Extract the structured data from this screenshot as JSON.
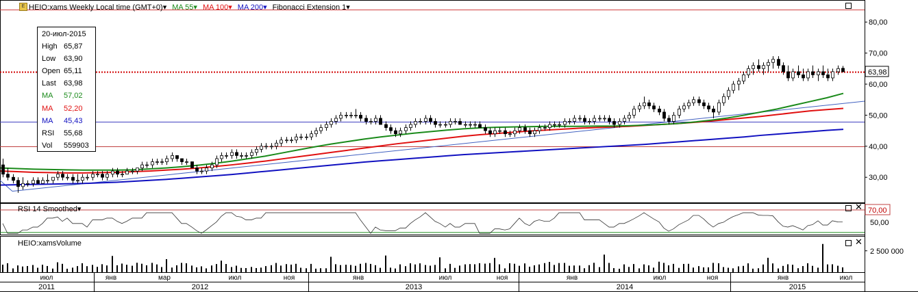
{
  "header": {
    "logo": "E",
    "symbol": "HEIO:xams Weekly Local time (GMT+0)",
    "ma55": "MA 55",
    "ma100": "MA 100",
    "ma200": "MA 200",
    "fib": "Fibonacci Extension 1"
  },
  "info_box": {
    "date": "20-июл-2015",
    "rows": [
      {
        "k": "High",
        "v": "65,87"
      },
      {
        "k": "Low",
        "v": "63,90"
      },
      {
        "k": "Open",
        "v": "65,11"
      },
      {
        "k": "Last",
        "v": "63,98"
      },
      {
        "k": "MA",
        "v": "57,02"
      },
      {
        "k": "MA",
        "v": "52,20"
      },
      {
        "k": "MA",
        "v": "45,43"
      },
      {
        "k": "RSI",
        "v": "55,68"
      },
      {
        "k": "Vol",
        "v": "559903"
      }
    ]
  },
  "colors": {
    "ma55": "#1a8a1a",
    "ma100": "#e01010",
    "ma200": "#1010c0",
    "up": "#ffffff",
    "down": "#000000"
  },
  "rsi_panel": {
    "title": "RSI 14 Smoothed",
    "level_70": "70,00",
    "label_50": "50,00"
  },
  "volume_panel": {
    "title": "HEIO:xamsVolume",
    "tick": "2 500 000"
  },
  "price_axis": {
    "ticks": [
      "80,00",
      "70,00",
      "60,00",
      "50,00",
      "40,00",
      "30,00"
    ],
    "last": "63,98"
  },
  "time_axis": {
    "months": [
      "июл",
      "янв",
      "мар",
      "июл",
      "ноя",
      "янв",
      "июл",
      "ноя",
      "янв",
      "июл",
      "ноя",
      "янв",
      "июл"
    ],
    "years": [
      "2011",
      "2012",
      "2013",
      "2014",
      "2015"
    ]
  },
  "chart_data": {
    "type": "candlestick",
    "timeframe": "weekly",
    "x_range": [
      "2011-05",
      "2015-07-20"
    ],
    "y_range": [
      23,
      86
    ],
    "ohlc": [
      [
        34.0,
        36.0,
        30.0,
        31.0
      ],
      [
        31.0,
        33.0,
        29.0,
        30.0
      ],
      [
        30.0,
        31.0,
        28.0,
        29.0
      ],
      [
        29.0,
        30.0,
        25.0,
        27.0
      ],
      [
        27.0,
        30.0,
        26.0,
        28.0
      ],
      [
        28.0,
        29.0,
        27.0,
        28.0
      ],
      [
        28.0,
        30.0,
        27.0,
        29.0
      ],
      [
        29.0,
        30.0,
        28.0,
        28.0
      ],
      [
        28.0,
        30.0,
        28.0,
        29.0
      ],
      [
        29.0,
        31.0,
        28.0,
        29.0
      ],
      [
        29.0,
        30.0,
        28.0,
        30.0
      ],
      [
        30.0,
        32.0,
        29.0,
        31.0
      ],
      [
        31.0,
        32.0,
        29.0,
        30.0
      ],
      [
        30.0,
        31.0,
        29.0,
        30.0
      ],
      [
        30.0,
        31.0,
        28.0,
        29.0
      ],
      [
        29.0,
        31.0,
        28.0,
        29.0
      ],
      [
        29.0,
        31.0,
        28.0,
        30.0
      ],
      [
        30.0,
        31.0,
        29.0,
        30.0
      ],
      [
        30.0,
        32.0,
        29.0,
        31.0
      ],
      [
        31.0,
        32.0,
        30.0,
        31.0
      ],
      [
        31.0,
        32.0,
        29.0,
        30.0
      ],
      [
        30.0,
        32.0,
        29.0,
        31.0
      ],
      [
        31.0,
        33.0,
        30.0,
        32.0
      ],
      [
        32.0,
        33.0,
        30.0,
        31.0
      ],
      [
        31.0,
        32.0,
        30.0,
        31.0
      ],
      [
        31.0,
        33.0,
        31.0,
        32.0
      ],
      [
        32.0,
        33.0,
        31.0,
        32.0
      ],
      [
        32.0,
        33.0,
        31.0,
        33.0
      ],
      [
        33.0,
        35.0,
        32.0,
        34.0
      ],
      [
        34.0,
        35.0,
        33.0,
        34.0
      ],
      [
        34.0,
        36.0,
        33.0,
        35.0
      ],
      [
        35.0,
        36.0,
        34.0,
        35.0
      ],
      [
        35.0,
        36.0,
        34.0,
        35.0
      ],
      [
        35.0,
        37.0,
        34.0,
        36.0
      ],
      [
        36.0,
        38.0,
        35.0,
        37.0
      ],
      [
        37.0,
        37.0,
        35.0,
        36.0
      ],
      [
        36.0,
        36.0,
        34.0,
        35.0
      ],
      [
        35.0,
        36.0,
        34.0,
        35.0
      ],
      [
        35.0,
        35.0,
        33.0,
        33.0
      ],
      [
        33.0,
        34.0,
        31.0,
        32.0
      ],
      [
        32.0,
        33.0,
        31.0,
        32.0
      ],
      [
        32.0,
        34.0,
        31.0,
        33.0
      ],
      [
        33.0,
        35.0,
        32.0,
        34.0
      ],
      [
        34.0,
        37.0,
        33.0,
        36.0
      ],
      [
        36.0,
        38.0,
        35.0,
        37.0
      ],
      [
        37.0,
        38.0,
        36.0,
        37.0
      ],
      [
        37.0,
        39.0,
        36.0,
        38.0
      ],
      [
        38.0,
        39.0,
        36.0,
        37.0
      ],
      [
        37.0,
        38.0,
        36.0,
        37.0
      ],
      [
        37.0,
        38.0,
        36.0,
        37.0
      ],
      [
        37.0,
        39.0,
        36.0,
        38.0
      ],
      [
        38.0,
        40.0,
        37.0,
        39.0
      ],
      [
        39.0,
        41.0,
        38.0,
        40.0
      ],
      [
        40.0,
        41.0,
        39.0,
        40.0
      ],
      [
        40.0,
        41.0,
        39.0,
        40.0
      ],
      [
        40.0,
        42.0,
        39.0,
        41.0
      ],
      [
        41.0,
        43.0,
        40.0,
        42.0
      ],
      [
        42.0,
        43.0,
        41.0,
        42.0
      ],
      [
        42.0,
        43.0,
        41.0,
        42.0
      ],
      [
        42.0,
        44.0,
        41.0,
        43.0
      ],
      [
        43.0,
        44.0,
        42.0,
        43.0
      ],
      [
        43.0,
        44.0,
        42.0,
        43.0
      ],
      [
        43.0,
        45.0,
        42.0,
        44.0
      ],
      [
        44.0,
        46.0,
        43.0,
        45.0
      ],
      [
        45.0,
        47.0,
        44.0,
        46.0
      ],
      [
        46.0,
        48.0,
        45.0,
        47.0
      ],
      [
        47.0,
        49.0,
        46.0,
        48.0
      ],
      [
        48.0,
        50.0,
        47.0,
        49.0
      ],
      [
        49.0,
        51.0,
        48.0,
        50.0
      ],
      [
        50.0,
        51.0,
        49.0,
        50.0
      ],
      [
        50.0,
        51.0,
        49.0,
        50.0
      ],
      [
        50.0,
        52.0,
        49.0,
        50.0
      ],
      [
        50.0,
        51.0,
        48.0,
        49.0
      ],
      [
        49.0,
        50.0,
        47.0,
        48.0
      ],
      [
        48.0,
        49.0,
        47.0,
        48.0
      ],
      [
        48.0,
        50.0,
        47.0,
        49.0
      ],
      [
        49.0,
        50.0,
        47.0,
        47.0
      ],
      [
        47.0,
        48.0,
        45.0,
        46.0
      ],
      [
        46.0,
        47.0,
        44.0,
        45.0
      ],
      [
        45.0,
        46.0,
        43.0,
        44.0
      ],
      [
        44.0,
        46.0,
        43.0,
        45.0
      ],
      [
        45.0,
        47.0,
        44.0,
        46.0
      ],
      [
        46.0,
        48.0,
        45.0,
        47.0
      ],
      [
        47.0,
        49.0,
        46.0,
        48.0
      ],
      [
        48.0,
        49.0,
        47.0,
        48.0
      ],
      [
        48.0,
        50.0,
        47.0,
        49.0
      ],
      [
        49.0,
        50.0,
        47.0,
        48.0
      ],
      [
        48.0,
        49.0,
        46.0,
        47.0
      ],
      [
        47.0,
        48.0,
        46.0,
        47.0
      ],
      [
        47.0,
        48.0,
        46.0,
        47.0
      ],
      [
        47.0,
        49.0,
        46.0,
        48.0
      ],
      [
        48.0,
        49.0,
        47.0,
        48.0
      ],
      [
        48.0,
        49.0,
        47.0,
        47.0
      ],
      [
        47.0,
        48.0,
        46.0,
        47.0
      ],
      [
        47.0,
        48.0,
        46.0,
        47.0
      ],
      [
        47.0,
        48.0,
        46.0,
        47.0
      ],
      [
        47.0,
        48.0,
        46.0,
        46.0
      ],
      [
        46.0,
        47.0,
        44.0,
        45.0
      ],
      [
        45.0,
        46.0,
        43.0,
        44.0
      ],
      [
        44.0,
        46.0,
        43.0,
        45.0
      ],
      [
        45.0,
        46.0,
        44.0,
        45.0
      ],
      [
        45.0,
        46.0,
        43.0,
        44.0
      ],
      [
        44.0,
        45.0,
        43.0,
        44.0
      ],
      [
        44.0,
        46.0,
        43.0,
        45.0
      ],
      [
        45.0,
        47.0,
        44.0,
        46.0
      ],
      [
        46.0,
        47.0,
        44.0,
        45.0
      ],
      [
        45.0,
        46.0,
        43.0,
        44.0
      ],
      [
        44.0,
        46.0,
        43.0,
        45.0
      ],
      [
        45.0,
        47.0,
        44.0,
        46.0
      ],
      [
        46.0,
        47.0,
        45.0,
        46.0
      ],
      [
        46.0,
        48.0,
        45.0,
        47.0
      ],
      [
        47.0,
        48.0,
        46.0,
        47.0
      ],
      [
        47.0,
        48.0,
        46.0,
        47.0
      ],
      [
        47.0,
        49.0,
        46.0,
        48.0
      ],
      [
        48.0,
        49.0,
        47.0,
        48.0
      ],
      [
        48.0,
        50.0,
        47.0,
        49.0
      ],
      [
        49.0,
        50.0,
        48.0,
        49.0
      ],
      [
        49.0,
        50.0,
        47.0,
        48.0
      ],
      [
        48.0,
        49.0,
        47.0,
        48.0
      ],
      [
        48.0,
        50.0,
        47.0,
        49.0
      ],
      [
        49.0,
        50.0,
        48.0,
        49.0
      ],
      [
        49.0,
        50.0,
        48.0,
        49.0
      ],
      [
        49.0,
        50.0,
        47.0,
        48.0
      ],
      [
        48.0,
        49.0,
        46.0,
        47.0
      ],
      [
        47.0,
        49.0,
        46.0,
        48.0
      ],
      [
        48.0,
        50.0,
        47.0,
        49.0
      ],
      [
        49.0,
        51.0,
        48.0,
        50.0
      ],
      [
        50.0,
        53.0,
        49.0,
        52.0
      ],
      [
        52.0,
        54.0,
        51.0,
        53.0
      ],
      [
        53.0,
        56.0,
        52.0,
        54.0
      ],
      [
        54.0,
        55.0,
        52.0,
        53.0
      ],
      [
        53.0,
        54.0,
        51.0,
        52.0
      ],
      [
        52.0,
        53.0,
        50.0,
        51.0
      ],
      [
        51.0,
        52.0,
        48.0,
        49.0
      ],
      [
        49.0,
        50.0,
        47.0,
        48.0
      ],
      [
        48.0,
        51.0,
        47.0,
        50.0
      ],
      [
        50.0,
        53.0,
        49.0,
        52.0
      ],
      [
        52.0,
        54.0,
        51.0,
        53.0
      ],
      [
        53.0,
        55.0,
        52.0,
        54.0
      ],
      [
        54.0,
        56.0,
        53.0,
        55.0
      ],
      [
        55.0,
        56.0,
        53.0,
        54.0
      ],
      [
        54.0,
        55.0,
        52.0,
        53.0
      ],
      [
        53.0,
        54.0,
        51.0,
        52.0
      ],
      [
        52.0,
        53.0,
        49.0,
        51.0
      ],
      [
        51.0,
        55.0,
        50.0,
        54.0
      ],
      [
        54.0,
        57.0,
        53.0,
        56.0
      ],
      [
        56.0,
        59.0,
        55.0,
        58.0
      ],
      [
        58.0,
        61.0,
        57.0,
        60.0
      ],
      [
        60.0,
        62.0,
        58.0,
        61.0
      ],
      [
        61.0,
        64.0,
        60.0,
        63.0
      ],
      [
        63.0,
        66.0,
        62.0,
        65.0
      ],
      [
        65.0,
        67.0,
        63.0,
        66.0
      ],
      [
        66.0,
        68.0,
        64.0,
        65.0
      ],
      [
        65.0,
        67.0,
        63.0,
        66.0
      ],
      [
        66.0,
        68.0,
        64.0,
        67.0
      ],
      [
        67.0,
        69.0,
        65.0,
        68.0
      ],
      [
        68.0,
        69.0,
        65.0,
        66.0
      ],
      [
        66.0,
        67.0,
        63.0,
        64.0
      ],
      [
        64.0,
        66.0,
        61.0,
        62.0
      ],
      [
        62.0,
        65.0,
        61.0,
        64.0
      ],
      [
        64.0,
        66.0,
        62.0,
        63.0
      ],
      [
        63.0,
        65.0,
        61.0,
        62.0
      ],
      [
        62.0,
        65.0,
        61.0,
        64.0
      ],
      [
        64.0,
        66.0,
        62.0,
        63.0
      ],
      [
        63.0,
        65.0,
        61.0,
        64.0
      ],
      [
        64.0,
        66.0,
        62.0,
        63.0
      ],
      [
        63.0,
        65.0,
        61.0,
        62.0
      ],
      [
        62.0,
        65.0,
        61.0,
        64.0
      ],
      [
        64.0,
        66.0,
        63.0,
        65.0
      ],
      [
        65.11,
        65.87,
        63.9,
        63.98
      ]
    ],
    "ma55": [
      33,
      32.8,
      32.6,
      32.5,
      32.4,
      32.3,
      32.3,
      32.3,
      32.4,
      32.7,
      33.0,
      33.4,
      33.9,
      34.5,
      35.2,
      36.0,
      36.8,
      37.8,
      38.8,
      39.8,
      40.7,
      41.5,
      42.3,
      43.0,
      43.6,
      44.2,
      44.7,
      45.2,
      45.6,
      45.9,
      46.1,
      46.2,
      46.3,
      46.4,
      46.4,
      46.4,
      46.5,
      46.5,
      46.6,
      46.8,
      47.0,
      47.3,
      47.8,
      48.4,
      49.1,
      50.0,
      51.0,
      52.0,
      53.2,
      54.4,
      55.6,
      57.02
    ],
    "ma100": [
      32,
      31.8,
      31.6,
      31.5,
      31.4,
      31.4,
      31.5,
      31.6,
      31.8,
      32.0,
      32.3,
      32.6,
      33.0,
      33.5,
      34.0,
      34.6,
      35.2,
      35.9,
      36.6,
      37.3,
      38.0,
      38.7,
      39.4,
      40.1,
      40.8,
      41.4,
      42.0,
      42.6,
      43.2,
      43.7,
      44.1,
      44.5,
      44.9,
      45.2,
      45.5,
      45.8,
      46.0,
      46.2,
      46.4,
      46.7,
      47.0,
      47.3,
      47.7,
      48.1,
      48.6,
      49.1,
      49.6,
      50.2,
      50.8,
      51.4,
      51.8,
      52.2
    ],
    "ma200": [
      27.5,
      27.6,
      27.7,
      27.8,
      27.9,
      28.0,
      28.2,
      28.4,
      28.7,
      29.0,
      29.3,
      29.7,
      30.1,
      30.5,
      30.9,
      31.4,
      31.9,
      32.4,
      32.9,
      33.4,
      33.9,
      34.4,
      34.9,
      35.3,
      35.7,
      36.1,
      36.5,
      36.9,
      37.3,
      37.6,
      37.9,
      38.2,
      38.5,
      38.8,
      39.1,
      39.4,
      39.7,
      40.0,
      40.3,
      40.6,
      41.0,
      41.4,
      41.8,
      42.2,
      42.6,
      43.0,
      43.5,
      43.9,
      44.3,
      44.7,
      45.1,
      45.43
    ],
    "horizontal_levels": [
      84.0,
      64.0,
      48.0,
      40.0
    ],
    "rsi": {
      "range": [
        30,
        80
      ],
      "levels": [
        70,
        50
      ],
      "last": 55.68
    },
    "volume": {
      "range": [
        0,
        4000000
      ],
      "last": 559903
    }
  }
}
